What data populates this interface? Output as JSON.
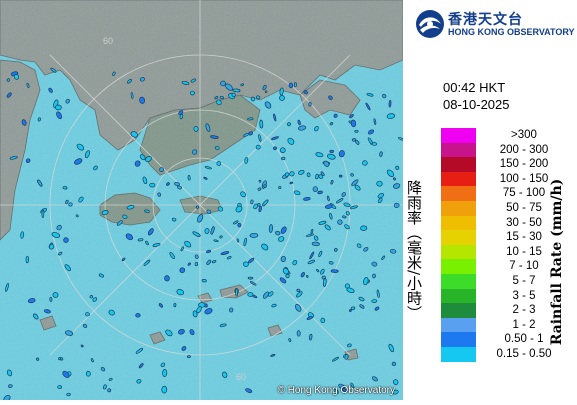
{
  "header": {
    "org_zh": "香港天文台",
    "org_en": "HONG KONG OBSERVATORY"
  },
  "timestamp": {
    "time": "00:42 HKT",
    "date": "08-10-2025"
  },
  "legend": {
    "title_zh": "降雨率（毫米/小時）",
    "title_en": "Rainfall Rate (mm/h)",
    "items": [
      {
        "label": ">300",
        "color": "#f000f0"
      },
      {
        "label": "200 - 300",
        "color": "#c8148c"
      },
      {
        "label": "150 - 200",
        "color": "#b40a28"
      },
      {
        "label": "100 - 150",
        "color": "#e61e14"
      },
      {
        "label": "75 - 100",
        "color": "#f06e14"
      },
      {
        "label": "50 - 75",
        "color": "#f0a00a"
      },
      {
        "label": "30 - 50",
        "color": "#f0be00"
      },
      {
        "label": "15 - 30",
        "color": "#e6d200"
      },
      {
        "label": "10 - 15",
        "color": "#b4e600"
      },
      {
        "label": "7 - 10",
        "color": "#78f000"
      },
      {
        "label": "5 - 7",
        "color": "#3cdc28"
      },
      {
        "label": "3 - 5",
        "color": "#28b428"
      },
      {
        "label": "2 - 3",
        "color": "#1e8c3c"
      },
      {
        "label": "1 - 2",
        "color": "#5aa0f0"
      },
      {
        "label": "0.50 - 1",
        "color": "#1e78f0"
      },
      {
        "label": "0.15 - 0.50",
        "color": "#14c8f0"
      }
    ]
  },
  "map": {
    "copyright": "© Hong Kong Observatory",
    "ring_labels": [
      "60",
      "60"
    ],
    "sea_color": "#4fc7df",
    "land_color": "#8c9896"
  }
}
